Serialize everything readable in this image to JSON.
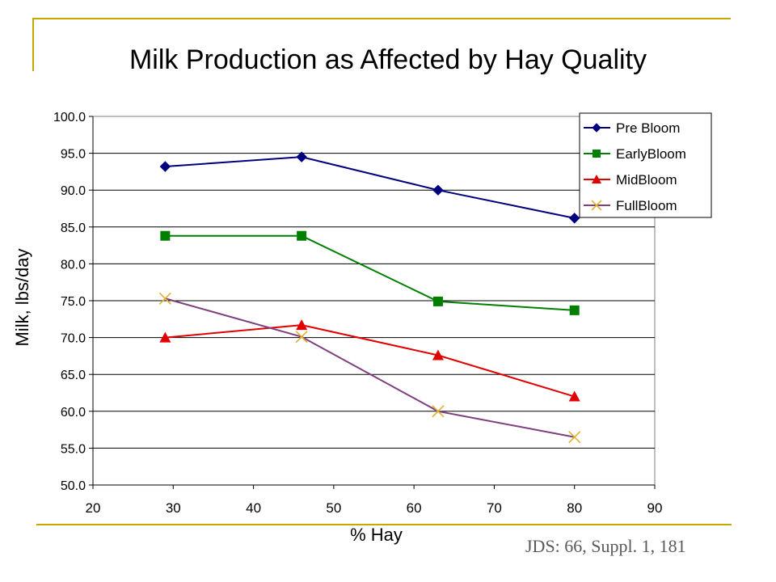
{
  "slide": {
    "title": "Milk Production as Affected by Hay Quality",
    "citation": "JDS: 66, Suppl. 1, 181",
    "accent_color": "#c8a800"
  },
  "chart_data": {
    "type": "line",
    "title": "Milk Production as Affected by Hay Quality",
    "xlabel": "% Hay",
    "ylabel": "Milk, lbs/day",
    "xlim": [
      20,
      90
    ],
    "ylim": [
      50,
      100
    ],
    "x_ticks": [
      "20",
      "30",
      "40",
      "50",
      "60",
      "70",
      "80",
      "90"
    ],
    "y_ticks": [
      "50.0",
      "55.0",
      "60.0",
      "65.0",
      "70.0",
      "75.0",
      "80.0",
      "85.0",
      "90.0",
      "95.0",
      "100.0"
    ],
    "grid": "horizontal",
    "legend_position": "top-right",
    "series": [
      {
        "name": "Pre Bloom",
        "color": "#00007f",
        "marker": "diamond",
        "x": [
          29,
          46,
          63,
          80
        ],
        "y": [
          93.2,
          94.5,
          90.0,
          86.2
        ]
      },
      {
        "name": "EarlyBloom",
        "color": "#007f00",
        "marker": "square",
        "x": [
          29,
          46,
          63,
          80
        ],
        "y": [
          83.8,
          83.8,
          74.9,
          73.7
        ]
      },
      {
        "name": "MidBloom",
        "color": "#e00000",
        "marker": "triangle",
        "x": [
          29,
          46,
          63,
          80
        ],
        "y": [
          70.0,
          71.7,
          67.6,
          62.0
        ]
      },
      {
        "name": "FullBloom",
        "color": "#7f3f7f",
        "marker": "x",
        "marker_color": "#e0b030",
        "x": [
          29,
          46,
          63,
          80
        ],
        "y": [
          75.3,
          70.1,
          60.0,
          56.5
        ]
      }
    ]
  }
}
